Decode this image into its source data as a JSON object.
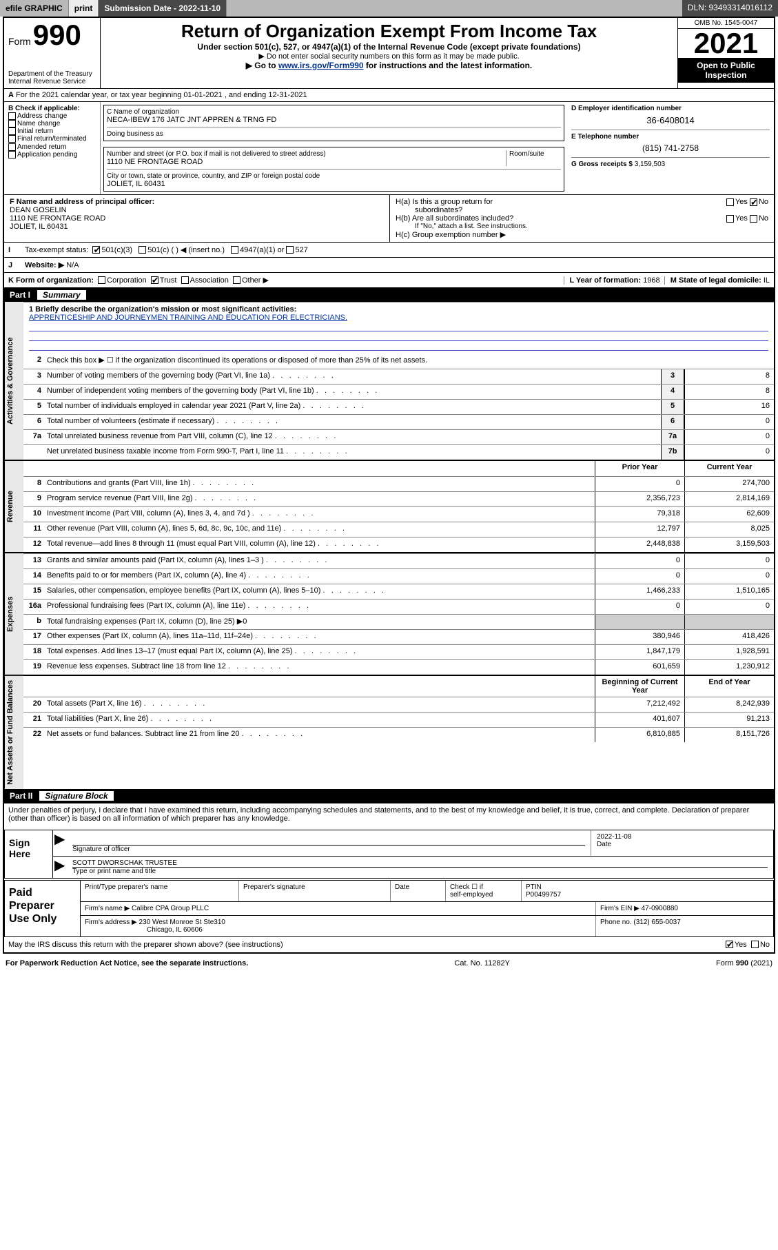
{
  "topbar": {
    "efile": "efile GRAPHIC",
    "print": "print",
    "sub_label": "Submission Date - 2022-11-10",
    "dln": "DLN: 93493314016112"
  },
  "header": {
    "form_word": "Form",
    "form_num": "990",
    "dept": "Department of the Treasury",
    "irs": "Internal Revenue Service",
    "title": "Return of Organization Exempt From Income Tax",
    "sub1": "Under section 501(c), 527, or 4947(a)(1) of the Internal Revenue Code (except private foundations)",
    "sub2": "▶ Do not enter social security numbers on this form as it may be made public.",
    "sub3_pre": "▶ Go to ",
    "sub3_link": "www.irs.gov/Form990",
    "sub3_post": " for instructions and the latest information.",
    "omb": "OMB No. 1545-0047",
    "year": "2021",
    "inspect1": "Open to Public",
    "inspect2": "Inspection"
  },
  "row_a": "For the 2021 calendar year, or tax year beginning 01-01-2021    , and ending 12-31-2021",
  "box_b": {
    "hdr": "B Check if applicable:",
    "opts": [
      "Address change",
      "Name change",
      "Initial return",
      "Final return/terminated",
      "Amended return",
      "Application pending"
    ]
  },
  "box_c": {
    "name_lbl": "C Name of organization",
    "name": "NECA-IBEW 176 JATC JNT APPREN & TRNG FD",
    "dba_lbl": "Doing business as",
    "dba": "",
    "addr_lbl": "Number and street (or P.O. box if mail is not delivered to street address)",
    "room_lbl": "Room/suite",
    "addr": "1110 NE FRONTAGE ROAD",
    "city_lbl": "City or town, state or province, country, and ZIP or foreign postal code",
    "city": "JOLIET, IL  60431"
  },
  "box_d": {
    "ein_lbl": "D Employer identification number",
    "ein": "36-6408014",
    "tel_lbl": "E Telephone number",
    "tel": "(815) 741-2758",
    "gross_lbl": "G Gross receipts $",
    "gross": "3,159,503"
  },
  "row_f": {
    "lbl": "F  Name and address of principal officer:",
    "name": "DEAN GOSELIN",
    "addr1": "1110 NE FRONTAGE ROAD",
    "addr2": "JOLIET, IL  60431"
  },
  "row_h": {
    "ha": "H(a)  Is this a group return for",
    "ha2": "subordinates?",
    "hb": "H(b)  Are all subordinates included?",
    "hb2": "If \"No,\" attach a list. See instructions.",
    "hc": "H(c)  Group exemption number ▶",
    "yes": "Yes",
    "no": "No"
  },
  "row_i": {
    "lbl": "Tax-exempt status:",
    "o1": "501(c)(3)",
    "o2": "501(c) (   ) ◀ (insert no.)",
    "o3": "4947(a)(1) or",
    "o4": "527"
  },
  "row_j": {
    "lbl": "Website: ▶",
    "val": "N/A"
  },
  "row_k": {
    "lbl": "K Form of organization:",
    "o1": "Corporation",
    "o2": "Trust",
    "o3": "Association",
    "o4": "Other ▶",
    "l_lbl": "L Year of formation:",
    "l_val": "1968",
    "m_lbl": "M State of legal domicile:",
    "m_val": "IL"
  },
  "part1": {
    "num": "Part I",
    "title": "Summary"
  },
  "mission": {
    "lbl": "1  Briefly describe the organization's mission or most significant activities:",
    "text": "APPRENTICESHIP AND JOURNEYMEN TRAINING AND EDUCATION FOR ELECTRICIANS."
  },
  "line2": "Check this box ▶ ☐  if the organization discontinued its operations or disposed of more than 25% of its net assets.",
  "tabs": {
    "gov": "Activities & Governance",
    "rev": "Revenue",
    "exp": "Expenses",
    "net": "Net Assets or Fund Balances"
  },
  "cols": {
    "prior": "Prior Year",
    "curr": "Current Year",
    "boy": "Beginning of Current Year",
    "eoy": "End of Year"
  },
  "lines_gov": [
    {
      "n": "3",
      "t": "Number of voting members of the governing body (Part VI, line 1a)",
      "nb": "3",
      "v": "8"
    },
    {
      "n": "4",
      "t": "Number of independent voting members of the governing body (Part VI, line 1b)",
      "nb": "4",
      "v": "8"
    },
    {
      "n": "5",
      "t": "Total number of individuals employed in calendar year 2021 (Part V, line 2a)",
      "nb": "5",
      "v": "16"
    },
    {
      "n": "6",
      "t": "Total number of volunteers (estimate if necessary)",
      "nb": "6",
      "v": "0"
    },
    {
      "n": "7a",
      "t": "Total unrelated business revenue from Part VIII, column (C), line 12",
      "nb": "7a",
      "v": "0"
    },
    {
      "n": "",
      "t": "Net unrelated business taxable income from Form 990-T, Part I, line 11",
      "nb": "7b",
      "v": "0"
    }
  ],
  "lines_rev": [
    {
      "n": "8",
      "t": "Contributions and grants (Part VIII, line 1h)",
      "p": "0",
      "c": "274,700"
    },
    {
      "n": "9",
      "t": "Program service revenue (Part VIII, line 2g)",
      "p": "2,356,723",
      "c": "2,814,169"
    },
    {
      "n": "10",
      "t": "Investment income (Part VIII, column (A), lines 3, 4, and 7d )",
      "p": "79,318",
      "c": "62,609"
    },
    {
      "n": "11",
      "t": "Other revenue (Part VIII, column (A), lines 5, 6d, 8c, 9c, 10c, and 11e)",
      "p": "12,797",
      "c": "8,025"
    },
    {
      "n": "12",
      "t": "Total revenue—add lines 8 through 11 (must equal Part VIII, column (A), line 12)",
      "p": "2,448,838",
      "c": "3,159,503"
    }
  ],
  "lines_exp": [
    {
      "n": "13",
      "t": "Grants and similar amounts paid (Part IX, column (A), lines 1–3 )",
      "p": "0",
      "c": "0"
    },
    {
      "n": "14",
      "t": "Benefits paid to or for members (Part IX, column (A), line 4)",
      "p": "0",
      "c": "0"
    },
    {
      "n": "15",
      "t": "Salaries, other compensation, employee benefits (Part IX, column (A), lines 5–10)",
      "p": "1,466,233",
      "c": "1,510,165"
    },
    {
      "n": "16a",
      "t": "Professional fundraising fees (Part IX, column (A), line 11e)",
      "p": "0",
      "c": "0"
    },
    {
      "n": "b",
      "t": "Total fundraising expenses (Part IX, column (D), line 25) ▶0",
      "p": "",
      "c": "",
      "shade": true
    },
    {
      "n": "17",
      "t": "Other expenses (Part IX, column (A), lines 11a–11d, 11f–24e)",
      "p": "380,946",
      "c": "418,426"
    },
    {
      "n": "18",
      "t": "Total expenses. Add lines 13–17 (must equal Part IX, column (A), line 25)",
      "p": "1,847,179",
      "c": "1,928,591"
    },
    {
      "n": "19",
      "t": "Revenue less expenses. Subtract line 18 from line 12",
      "p": "601,659",
      "c": "1,230,912"
    }
  ],
  "lines_net": [
    {
      "n": "20",
      "t": "Total assets (Part X, line 16)",
      "p": "7,212,492",
      "c": "8,242,939"
    },
    {
      "n": "21",
      "t": "Total liabilities (Part X, line 26)",
      "p": "401,607",
      "c": "91,213"
    },
    {
      "n": "22",
      "t": "Net assets or fund balances. Subtract line 21 from line 20",
      "p": "6,810,885",
      "c": "8,151,726"
    }
  ],
  "part2": {
    "num": "Part II",
    "title": "Signature Block"
  },
  "penalty": "Under penalties of perjury, I declare that I have examined this return, including accompanying schedules and statements, and to the best of my knowledge and belief, it is true, correct, and complete. Declaration of preparer (other than officer) is based on all information of which preparer has any knowledge.",
  "sign": {
    "here": "Sign Here",
    "sig_lbl": "Signature of officer",
    "date_lbl": "Date",
    "date": "2022-11-08",
    "name": "SCOTT DWORSCHAK TRUSTEE",
    "name_lbl": "Type or print name and title"
  },
  "paid": {
    "title": "Paid Preparer Use Only",
    "h1": "Print/Type preparer's name",
    "h2": "Preparer's signature",
    "h3": "Date",
    "h4a": "Check ☐ if",
    "h4b": "self-employed",
    "h5": "PTIN",
    "ptin": "P00499757",
    "firm_lbl": "Firm's name    ▶",
    "firm": "Calibre CPA Group PLLC",
    "ein_lbl": "Firm's EIN ▶",
    "ein": "47-0900880",
    "addr_lbl": "Firm's address ▶",
    "addr1": "230 West Monroe St Ste310",
    "addr2": "Chicago, IL  60606",
    "phone_lbl": "Phone no.",
    "phone": "(312) 655-0037"
  },
  "discuss": {
    "q": "May the IRS discuss this return with the preparer shown above? (see instructions)",
    "yes": "Yes",
    "no": "No"
  },
  "footer": {
    "l": "For Paperwork Reduction Act Notice, see the separate instructions.",
    "m": "Cat. No. 11282Y",
    "r": "Form 990 (2021)"
  }
}
